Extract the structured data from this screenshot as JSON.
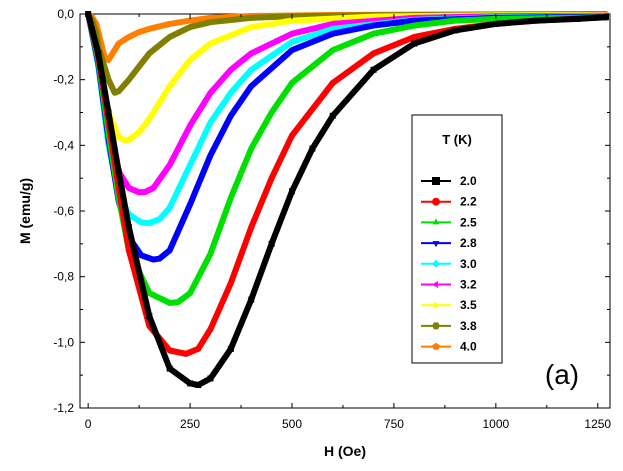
{
  "chart_data": {
    "type": "line",
    "title": "",
    "xlabel": "H (Oe)",
    "ylabel": "M (emu/g)",
    "xlim": [
      -20,
      1280
    ],
    "ylim": [
      -1.2,
      0.0
    ],
    "xticks": [
      0,
      250,
      500,
      750,
      1000,
      1250
    ],
    "xtick_labels": [
      "0",
      "250",
      "500",
      "750",
      "1000",
      "1250"
    ],
    "yticks": [
      0.0,
      -0.2,
      -0.4,
      -0.6,
      -0.8,
      -1.0,
      -1.2
    ],
    "ytick_labels": [
      "0,0",
      "-0,2",
      "-0,4",
      "-0,6",
      "-0,8",
      "-1,0",
      "-1,2"
    ],
    "legend_title": "T (K)",
    "legend_position": "right-center",
    "annotation": "(a)",
    "series": [
      {
        "name": "2.0",
        "color": "#000000",
        "marker": "square",
        "x": [
          0,
          25,
          50,
          75,
          100,
          150,
          200,
          250,
          270,
          300,
          350,
          400,
          450,
          500,
          550,
          600,
          700,
          800,
          900,
          1000,
          1100,
          1200,
          1270
        ],
        "y": [
          0.0,
          -0.12,
          -0.3,
          -0.48,
          -0.65,
          -0.92,
          -1.08,
          -1.125,
          -1.13,
          -1.11,
          -1.02,
          -0.87,
          -0.7,
          -0.54,
          -0.41,
          -0.31,
          -0.17,
          -0.09,
          -0.05,
          -0.03,
          -0.02,
          -0.015,
          -0.01
        ]
      },
      {
        "name": "2.2",
        "color": "#ff0000",
        "marker": "circle",
        "x": [
          0,
          25,
          50,
          75,
          100,
          150,
          200,
          240,
          270,
          300,
          350,
          400,
          450,
          500,
          600,
          700,
          800,
          900,
          1000,
          1100,
          1270
        ],
        "y": [
          0.0,
          -0.13,
          -0.33,
          -0.53,
          -0.72,
          -0.95,
          -1.025,
          -1.035,
          -1.02,
          -0.96,
          -0.82,
          -0.65,
          -0.5,
          -0.37,
          -0.21,
          -0.12,
          -0.07,
          -0.045,
          -0.03,
          -0.02,
          -0.01
        ]
      },
      {
        "name": "2.5",
        "color": "#00e000",
        "marker": "triangle-up",
        "x": [
          0,
          25,
          50,
          75,
          100,
          150,
          200,
          220,
          250,
          300,
          350,
          400,
          450,
          500,
          600,
          700,
          800,
          900,
          1000,
          1270
        ],
        "y": [
          0.0,
          -0.14,
          -0.36,
          -0.56,
          -0.72,
          -0.85,
          -0.88,
          -0.878,
          -0.85,
          -0.73,
          -0.56,
          -0.41,
          -0.3,
          -0.21,
          -0.11,
          -0.06,
          -0.035,
          -0.02,
          -0.015,
          -0.01
        ]
      },
      {
        "name": "2.8",
        "color": "#0000ff",
        "marker": "triangle-down",
        "x": [
          0,
          25,
          50,
          75,
          100,
          130,
          160,
          175,
          200,
          250,
          300,
          350,
          400,
          500,
          600,
          700,
          800,
          1000,
          1270
        ],
        "y": [
          0.0,
          -0.15,
          -0.38,
          -0.57,
          -0.68,
          -0.735,
          -0.748,
          -0.745,
          -0.72,
          -0.58,
          -0.43,
          -0.31,
          -0.22,
          -0.11,
          -0.06,
          -0.035,
          -0.02,
          -0.012,
          -0.008
        ]
      },
      {
        "name": "3.0",
        "color": "#00ffff",
        "marker": "diamond",
        "x": [
          0,
          25,
          50,
          75,
          100,
          130,
          150,
          175,
          200,
          250,
          300,
          350,
          400,
          500,
          600,
          800,
          1000,
          1270
        ],
        "y": [
          0.0,
          -0.16,
          -0.4,
          -0.55,
          -0.61,
          -0.635,
          -0.637,
          -0.625,
          -0.59,
          -0.46,
          -0.33,
          -0.24,
          -0.17,
          -0.085,
          -0.045,
          -0.018,
          -0.01,
          -0.006
        ]
      },
      {
        "name": "3.2",
        "color": "#ff00ff",
        "marker": "triangle-left",
        "x": [
          0,
          25,
          50,
          75,
          100,
          125,
          140,
          160,
          200,
          250,
          300,
          350,
          400,
          500,
          600,
          800,
          1000,
          1270
        ],
        "y": [
          0.0,
          -0.15,
          -0.36,
          -0.48,
          -0.53,
          -0.543,
          -0.542,
          -0.53,
          -0.46,
          -0.34,
          -0.24,
          -0.17,
          -0.12,
          -0.06,
          -0.03,
          -0.012,
          -0.007,
          -0.005
        ]
      },
      {
        "name": "3.5",
        "color": "#ffff00",
        "marker": "triangle-right",
        "x": [
          0,
          25,
          50,
          75,
          90,
          100,
          125,
          150,
          200,
          250,
          300,
          400,
          500,
          700,
          1000,
          1270
        ],
        "y": [
          0.0,
          -0.14,
          -0.3,
          -0.375,
          -0.385,
          -0.383,
          -0.36,
          -0.32,
          -0.22,
          -0.14,
          -0.09,
          -0.04,
          -0.02,
          -0.008,
          -0.004,
          -0.003
        ]
      },
      {
        "name": "3.8",
        "color": "#808000",
        "marker": "hexagon",
        "x": [
          0,
          10,
          15,
          20,
          25,
          50,
          65,
          75,
          100,
          125,
          150,
          200,
          250,
          300,
          400,
          500,
          700,
          1000,
          1270
        ],
        "y": [
          0.0,
          -0.02,
          -0.04,
          -0.06,
          -0.1,
          -0.2,
          -0.24,
          -0.235,
          -0.2,
          -0.16,
          -0.12,
          -0.07,
          -0.04,
          -0.025,
          -0.012,
          -0.007,
          -0.004,
          -0.002,
          -0.001
        ]
      },
      {
        "name": "4.0",
        "color": "#ff8000",
        "marker": "pentagon",
        "x": [
          0,
          10,
          20,
          30,
          40,
          50,
          60,
          75,
          100,
          125,
          150,
          200,
          250,
          300,
          400,
          600,
          1000,
          1270
        ],
        "y": [
          0.0,
          -0.01,
          -0.03,
          -0.08,
          -0.13,
          -0.14,
          -0.12,
          -0.09,
          -0.07,
          -0.055,
          -0.045,
          -0.03,
          -0.02,
          -0.012,
          -0.006,
          -0.003,
          -0.001,
          0.0
        ]
      }
    ]
  }
}
